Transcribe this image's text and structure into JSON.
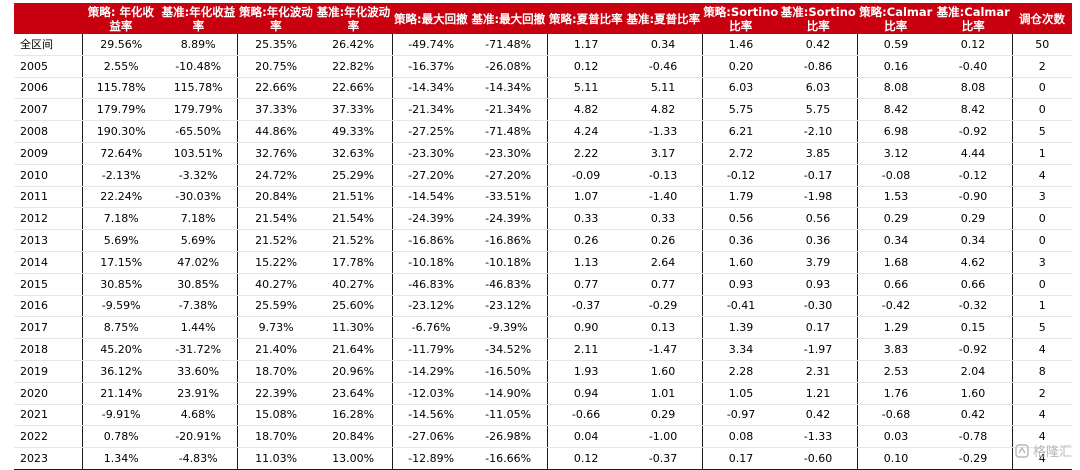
{
  "table": {
    "headers": [
      "",
      "策略: 年化收益率",
      "基准:年化收益率",
      "策略:年化波动率",
      "基准:年化波动率",
      "策略:最大回撤",
      "基准:最大回撤",
      "策略:夏普比率",
      "基准:夏普比率",
      "策略:Sortino比率",
      "基准:Sortino比率",
      "策略:Calmar比率",
      "基准:Calmar比率",
      "调仓次数"
    ],
    "rows": [
      [
        "全区间",
        "29.56%",
        "8.89%",
        "25.35%",
        "26.42%",
        "-49.74%",
        "-71.48%",
        "1.17",
        "0.34",
        "1.46",
        "0.42",
        "0.59",
        "0.12",
        "50"
      ],
      [
        "2005",
        "2.55%",
        "-10.48%",
        "20.75%",
        "22.82%",
        "-16.37%",
        "-26.08%",
        "0.12",
        "-0.46",
        "0.20",
        "-0.86",
        "0.16",
        "-0.40",
        "2"
      ],
      [
        "2006",
        "115.78%",
        "115.78%",
        "22.66%",
        "22.66%",
        "-14.34%",
        "-14.34%",
        "5.11",
        "5.11",
        "6.03",
        "6.03",
        "8.08",
        "8.08",
        "0"
      ],
      [
        "2007",
        "179.79%",
        "179.79%",
        "37.33%",
        "37.33%",
        "-21.34%",
        "-21.34%",
        "4.82",
        "4.82",
        "5.75",
        "5.75",
        "8.42",
        "8.42",
        "0"
      ],
      [
        "2008",
        "190.30%",
        "-65.50%",
        "44.86%",
        "49.33%",
        "-27.25%",
        "-71.48%",
        "4.24",
        "-1.33",
        "6.21",
        "-2.10",
        "6.98",
        "-0.92",
        "5"
      ],
      [
        "2009",
        "72.64%",
        "103.51%",
        "32.76%",
        "32.63%",
        "-23.30%",
        "-23.30%",
        "2.22",
        "3.17",
        "2.72",
        "3.85",
        "3.12",
        "4.44",
        "1"
      ],
      [
        "2010",
        "-2.13%",
        "-3.32%",
        "24.72%",
        "25.29%",
        "-27.20%",
        "-27.20%",
        "-0.09",
        "-0.13",
        "-0.12",
        "-0.17",
        "-0.08",
        "-0.12",
        "4"
      ],
      [
        "2011",
        "22.24%",
        "-30.03%",
        "20.84%",
        "21.51%",
        "-14.54%",
        "-33.51%",
        "1.07",
        "-1.40",
        "1.79",
        "-1.98",
        "1.53",
        "-0.90",
        "3"
      ],
      [
        "2012",
        "7.18%",
        "7.18%",
        "21.54%",
        "21.54%",
        "-24.39%",
        "-24.39%",
        "0.33",
        "0.33",
        "0.56",
        "0.56",
        "0.29",
        "0.29",
        "0"
      ],
      [
        "2013",
        "5.69%",
        "5.69%",
        "21.52%",
        "21.52%",
        "-16.86%",
        "-16.86%",
        "0.26",
        "0.26",
        "0.36",
        "0.36",
        "0.34",
        "0.34",
        "0"
      ],
      [
        "2014",
        "17.15%",
        "47.02%",
        "15.22%",
        "17.78%",
        "-10.18%",
        "-10.18%",
        "1.13",
        "2.64",
        "1.60",
        "3.79",
        "1.68",
        "4.62",
        "3"
      ],
      [
        "2015",
        "30.85%",
        "30.85%",
        "40.27%",
        "40.27%",
        "-46.83%",
        "-46.83%",
        "0.77",
        "0.77",
        "0.93",
        "0.93",
        "0.66",
        "0.66",
        "0"
      ],
      [
        "2016",
        "-9.59%",
        "-7.38%",
        "25.59%",
        "25.60%",
        "-23.12%",
        "-23.12%",
        "-0.37",
        "-0.29",
        "-0.41",
        "-0.30",
        "-0.42",
        "-0.32",
        "1"
      ],
      [
        "2017",
        "8.75%",
        "1.44%",
        "9.73%",
        "11.30%",
        "-6.76%",
        "-9.39%",
        "0.90",
        "0.13",
        "1.39",
        "0.17",
        "1.29",
        "0.15",
        "5"
      ],
      [
        "2018",
        "45.20%",
        "-31.72%",
        "21.40%",
        "21.64%",
        "-11.79%",
        "-34.52%",
        "2.11",
        "-1.47",
        "3.34",
        "-1.97",
        "3.83",
        "-0.92",
        "4"
      ],
      [
        "2019",
        "36.12%",
        "33.60%",
        "18.70%",
        "20.96%",
        "-14.29%",
        "-16.50%",
        "1.93",
        "1.60",
        "2.28",
        "2.31",
        "2.53",
        "2.04",
        "8"
      ],
      [
        "2020",
        "21.14%",
        "23.91%",
        "22.39%",
        "23.64%",
        "-12.03%",
        "-14.90%",
        "0.94",
        "1.01",
        "1.05",
        "1.21",
        "1.76",
        "1.60",
        "2"
      ],
      [
        "2021",
        "-9.91%",
        "4.68%",
        "15.08%",
        "16.28%",
        "-14.56%",
        "-11.05%",
        "-0.66",
        "0.29",
        "-0.97",
        "0.42",
        "-0.68",
        "0.42",
        "4"
      ],
      [
        "2022",
        "0.78%",
        "-20.91%",
        "18.70%",
        "20.84%",
        "-27.06%",
        "-26.98%",
        "0.04",
        "-1.00",
        "0.08",
        "-1.33",
        "0.03",
        "-0.78",
        "4"
      ],
      [
        "2023",
        "1.34%",
        "-4.83%",
        "11.03%",
        "13.00%",
        "-12.89%",
        "-16.66%",
        "0.12",
        "-0.37",
        "0.17",
        "-0.60",
        "0.10",
        "-0.29",
        "4"
      ]
    ]
  },
  "watermark": {
    "text": "格隆汇",
    "icon": "watermark-logo-icon"
  },
  "colors": {
    "header_bg": "#c8000f",
    "header_text": "#ffffff",
    "separator": "#1a1a1a"
  }
}
